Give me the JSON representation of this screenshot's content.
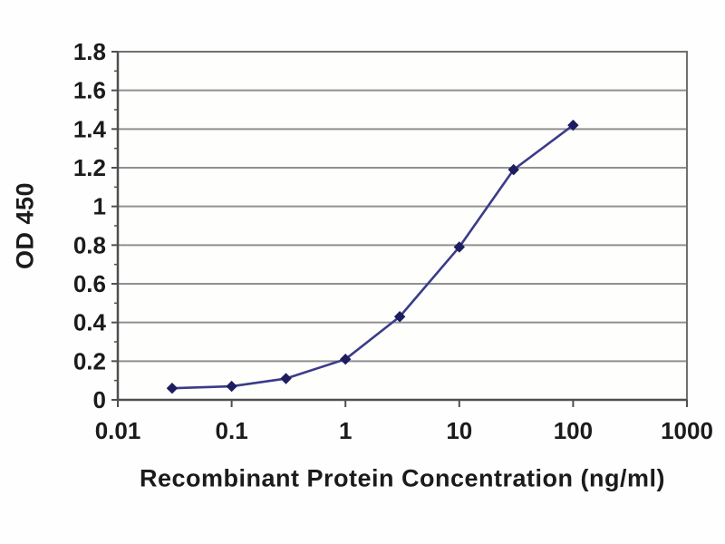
{
  "chart_data": {
    "type": "line",
    "title": "",
    "xlabel": "Recombinant Protein Concentration (ng/ml)",
    "ylabel": "OD 450",
    "x_scale": "log",
    "xlim": [
      0.01,
      1000
    ],
    "ylim": [
      0,
      1.8
    ],
    "x_tick_values": [
      0.01,
      0.1,
      1,
      10,
      100,
      1000
    ],
    "x_tick_labels": [
      "0.01",
      "0.1",
      "1",
      "10",
      "100",
      "1000"
    ],
    "y_tick_values": [
      0,
      0.2,
      0.4,
      0.6,
      0.8,
      1,
      1.2,
      1.4,
      1.6,
      1.8
    ],
    "y_tick_labels": [
      "0",
      "0.2",
      "0.4",
      "0.6",
      "0.8",
      "1",
      "1.2",
      "1.4",
      "1.6",
      "1.8"
    ],
    "y_minor_tick_values": [
      0.1,
      0.3,
      0.5,
      0.7,
      0.9,
      1.1,
      1.3,
      1.5,
      1.7
    ],
    "grid": "horizontal",
    "legend": "none",
    "series": [
      {
        "name": "OD 450",
        "marker": "diamond",
        "x": [
          0.03,
          0.1,
          0.3,
          1,
          3,
          10,
          30,
          100
        ],
        "y": [
          0.06,
          0.07,
          0.11,
          0.21,
          0.43,
          0.79,
          1.19,
          1.42
        ]
      }
    ],
    "colors": {
      "line": "#3b3b8a",
      "marker": "#1d1d5f",
      "gridline": "#909090",
      "frame": "#707070",
      "axis": "#4f4f4f",
      "text": "#1b1b1b",
      "background": "#fefefe"
    }
  }
}
